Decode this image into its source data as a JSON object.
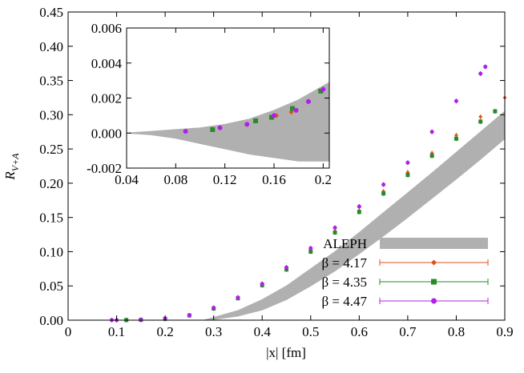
{
  "chart_data": [
    {
      "type": "scatter",
      "xlabel": "|x| [fm]",
      "ylabel": {
        "main": "R",
        "sub": "V+A"
      },
      "xlim": [
        0,
        0.9
      ],
      "ylim": [
        0,
        0.45
      ],
      "xticks": [
        0,
        0.1,
        0.2,
        0.3,
        0.4,
        0.5,
        0.6,
        0.7,
        0.8,
        0.9
      ],
      "yticks": [
        {
          "value": 0,
          "label": "0.00"
        },
        {
          "value": 0.05,
          "label": "0.05"
        },
        {
          "value": 0.1,
          "label": "0.10"
        },
        {
          "value": 0.15,
          "label": "0.15"
        },
        {
          "value": 0.2,
          "label": "0.20"
        },
        {
          "value": 0.25,
          "label": "0.25"
        },
        {
          "value": 0.3,
          "label": "0.30"
        },
        {
          "value": 0.35,
          "label": "0.35"
        },
        {
          "value": 0.4,
          "label": "0.40"
        },
        {
          "value": 0.45,
          "label": "0.45"
        }
      ],
      "legend": "bottom right",
      "band": {
        "name": "ALEPH",
        "color": "#b0b0b0",
        "x": [
          0.28,
          0.3,
          0.35,
          0.4,
          0.45,
          0.5,
          0.55,
          0.6,
          0.65,
          0.7,
          0.75,
          0.8,
          0.85,
          0.9
        ],
        "lower": [
          0,
          0.001,
          0.006,
          0.015,
          0.03,
          0.05,
          0.072,
          0.097,
          0.123,
          0.15,
          0.178,
          0.206,
          0.235,
          0.265
        ],
        "upper": [
          0,
          0.004,
          0.014,
          0.03,
          0.05,
          0.075,
          0.1,
          0.128,
          0.157,
          0.186,
          0.215,
          0.245,
          0.275,
          0.305
        ]
      },
      "series": [
        {
          "name": "β = 4.17",
          "color": "#e0501a",
          "marker": "diamond",
          "x": [
            0.15,
            0.2,
            0.25,
            0.3,
            0.35,
            0.4,
            0.45,
            0.5,
            0.55,
            0.6,
            0.65,
            0.7,
            0.75,
            0.8,
            0.85,
            0.9
          ],
          "values": [
            0.0005,
            0.002,
            0.007,
            0.018,
            0.033,
            0.052,
            0.075,
            0.101,
            0.13,
            0.16,
            0.188,
            0.216,
            0.244,
            0.27,
            0.297,
            0.325
          ]
        },
        {
          "name": "β = 4.35",
          "color": "#2a8a2a",
          "marker": "square",
          "x": [
            0.12,
            0.15,
            0.2,
            0.25,
            0.3,
            0.35,
            0.4,
            0.45,
            0.5,
            0.55,
            0.6,
            0.65,
            0.7,
            0.75,
            0.8,
            0.85,
            0.88
          ],
          "values": [
            0.0002,
            0.0005,
            0.002,
            0.007,
            0.017,
            0.032,
            0.051,
            0.074,
            0.1,
            0.128,
            0.158,
            0.185,
            0.212,
            0.24,
            0.265,
            0.29,
            0.305
          ]
        },
        {
          "name": "β = 4.47",
          "color": "#b020e8",
          "marker": "circle",
          "x": [
            0.09,
            0.1,
            0.15,
            0.2,
            0.25,
            0.3,
            0.35,
            0.4,
            0.45,
            0.5,
            0.55,
            0.6,
            0.65,
            0.7,
            0.75,
            0.8,
            0.85,
            0.86
          ],
          "values": [
            0.0001,
            0,
            0.0005,
            0.002,
            0.007,
            0.018,
            0.033,
            0.053,
            0.077,
            0.105,
            0.135,
            0.166,
            0.198,
            0.23,
            0.275,
            0.32,
            0.36,
            0.37
          ]
        }
      ]
    },
    {
      "type": "scatter",
      "xlim": [
        0.04,
        0.205
      ],
      "ylim": [
        -0.002,
        0.006
      ],
      "xticks": [
        0.04,
        0.08,
        0.12,
        0.16,
        0.2
      ],
      "yticks": [
        -0.002,
        {
          "value": 0,
          "label": "0.000"
        },
        0.002,
        0.004,
        0.006
      ],
      "band": {
        "color": "#b0b0b0",
        "x": [
          0.04,
          0.06,
          0.08,
          0.1,
          0.12,
          0.14,
          0.16,
          0.18,
          0.205
        ],
        "lower": [
          0,
          -0.0001,
          -0.0003,
          -0.0006,
          -0.0009,
          -0.0012,
          -0.0014,
          -0.0016,
          -0.0016
        ],
        "upper": [
          0,
          0.0001,
          0.0002,
          0.0003,
          0.0005,
          0.0008,
          0.0013,
          0.0019,
          0.0029
        ]
      },
      "series": [
        {
          "color": "#e0501a",
          "marker": "diamond",
          "x": [
            0.162,
            0.174
          ],
          "values": [
            0.001,
            0.0012
          ]
        },
        {
          "color": "#2a8a2a",
          "marker": "square",
          "x": [
            0.11,
            0.145,
            0.158,
            0.175,
            0.198
          ],
          "values": [
            0.0002,
            0.0007,
            0.0009,
            0.0014,
            0.0024
          ]
        },
        {
          "color": "#b020e8",
          "marker": "circle",
          "x": [
            0.088,
            0.116,
            0.138,
            0.16,
            0.178,
            0.188,
            0.2
          ],
          "values": [
            0.0001,
            0.0003,
            0.0005,
            0.001,
            0.0013,
            0.0018,
            0.0025
          ]
        }
      ]
    }
  ]
}
